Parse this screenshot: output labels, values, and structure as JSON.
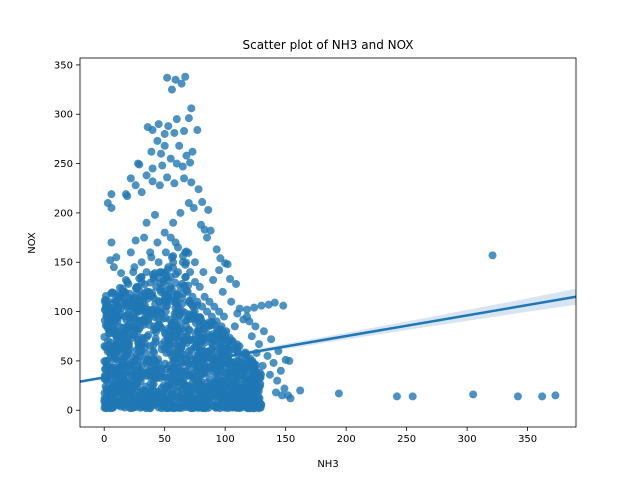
{
  "chart_data": {
    "type": "scatter",
    "title": "Scatter plot of NH3 and NOX",
    "xlabel": "NH3",
    "ylabel": "NOX",
    "xlim": [
      -20,
      390
    ],
    "ylim": [
      -17,
      357
    ],
    "xticks": [
      0,
      50,
      100,
      150,
      200,
      250,
      300,
      350
    ],
    "yticks": [
      0,
      50,
      100,
      150,
      200,
      250,
      300,
      350
    ],
    "grid": false,
    "point_color": "#1f77b4",
    "regression_line": {
      "color": "#1f77b4",
      "band_color": "#a6c4e3",
      "x": [
        -20,
        390
      ],
      "y": [
        29,
        115
      ],
      "band_halfwidth_at_end": [
        1.5,
        8
      ]
    },
    "dense_cluster": {
      "description_note": "",
      "x_range": [
        0,
        130
      ],
      "y_range": [
        2,
        115
      ]
    },
    "points": [
      [
        52,
        337
      ],
      [
        59,
        335
      ],
      [
        67,
        338
      ],
      [
        56,
        325
      ],
      [
        64,
        331
      ],
      [
        72,
        306
      ],
      [
        45,
        290
      ],
      [
        53,
        288
      ],
      [
        60,
        295
      ],
      [
        70,
        296
      ],
      [
        36,
        287
      ],
      [
        40,
        284
      ],
      [
        50,
        280
      ],
      [
        58,
        281
      ],
      [
        66,
        283
      ],
      [
        77,
        284
      ],
      [
        44,
        273
      ],
      [
        50,
        268
      ],
      [
        39,
        262
      ],
      [
        47,
        260
      ],
      [
        62,
        268
      ],
      [
        68,
        258
      ],
      [
        73,
        262
      ],
      [
        71,
        251
      ],
      [
        65,
        247
      ],
      [
        60,
        250
      ],
      [
        55,
        255
      ],
      [
        48,
        248
      ],
      [
        40,
        245
      ],
      [
        35,
        238
      ],
      [
        28,
        250
      ],
      [
        29,
        249
      ],
      [
        22,
        235
      ],
      [
        26,
        228
      ],
      [
        31,
        221
      ],
      [
        18,
        219
      ],
      [
        19,
        217
      ],
      [
        6,
        219
      ],
      [
        3,
        210
      ],
      [
        6,
        205
      ],
      [
        40,
        232
      ],
      [
        46,
        228
      ],
      [
        52,
        236
      ],
      [
        58,
        230
      ],
      [
        66,
        235
      ],
      [
        72,
        231
      ],
      [
        78,
        224
      ],
      [
        81,
        211
      ],
      [
        86,
        203
      ],
      [
        80,
        188
      ],
      [
        85,
        175
      ],
      [
        83,
        183
      ],
      [
        88,
        182
      ],
      [
        93,
        163
      ],
      [
        96,
        154
      ],
      [
        100,
        149
      ],
      [
        102,
        148
      ],
      [
        95,
        142
      ],
      [
        104,
        133
      ],
      [
        109,
        128
      ],
      [
        6,
        170
      ],
      [
        10,
        155
      ],
      [
        5,
        152
      ],
      [
        14,
        139
      ],
      [
        18,
        132
      ],
      [
        8,
        145
      ],
      [
        12,
        115
      ],
      [
        16,
        120
      ],
      [
        20,
        128
      ],
      [
        24,
        140
      ],
      [
        31,
        150
      ],
      [
        38,
        160
      ],
      [
        44,
        170
      ],
      [
        50,
        180
      ],
      [
        57,
        190
      ],
      [
        63,
        200
      ],
      [
        70,
        210
      ],
      [
        74,
        205
      ],
      [
        42,
        198
      ],
      [
        35,
        190
      ],
      [
        26,
        172
      ],
      [
        22,
        160
      ],
      [
        55,
        175
      ],
      [
        61,
        165
      ],
      [
        67,
        160
      ],
      [
        75,
        150
      ],
      [
        82,
        140
      ],
      [
        90,
        132
      ],
      [
        98,
        120
      ],
      [
        105,
        110
      ],
      [
        112,
        103
      ],
      [
        118,
        102
      ],
      [
        124,
        104
      ],
      [
        130,
        106
      ],
      [
        136,
        107
      ],
      [
        141,
        109
      ],
      [
        148,
        106
      ],
      [
        120,
        90
      ],
      [
        125,
        85
      ],
      [
        132,
        80
      ],
      [
        138,
        72
      ],
      [
        144,
        60
      ],
      [
        150,
        51
      ],
      [
        153,
        50
      ],
      [
        128,
        67
      ],
      [
        135,
        55
      ],
      [
        140,
        48
      ],
      [
        146,
        40
      ],
      [
        118,
        95
      ],
      [
        122,
        75
      ],
      [
        110,
        98
      ],
      [
        115,
        92
      ],
      [
        108,
        85
      ],
      [
        126,
        58
      ],
      [
        131,
        45
      ],
      [
        137,
        36
      ],
      [
        143,
        30
      ],
      [
        149,
        22
      ],
      [
        152,
        15
      ],
      [
        154,
        12
      ],
      [
        142,
        18
      ],
      [
        147,
        15
      ],
      [
        162,
        20
      ],
      [
        194,
        17
      ],
      [
        242,
        14
      ],
      [
        255,
        14
      ],
      [
        305,
        16
      ],
      [
        342,
        14
      ],
      [
        362,
        14
      ],
      [
        373,
        15
      ],
      [
        321,
        157
      ],
      [
        10,
        60
      ],
      [
        14,
        45
      ],
      [
        18,
        70
      ],
      [
        22,
        55
      ],
      [
        26,
        40
      ],
      [
        30,
        85
      ],
      [
        34,
        95
      ],
      [
        38,
        65
      ],
      [
        42,
        50
      ],
      [
        46,
        110
      ],
      [
        50,
        120
      ],
      [
        54,
        75
      ],
      [
        58,
        90
      ],
      [
        62,
        100
      ],
      [
        66,
        80
      ],
      [
        70,
        60
      ],
      [
        74,
        95
      ],
      [
        78,
        70
      ],
      [
        82,
        55
      ],
      [
        86,
        85
      ],
      [
        90,
        65
      ],
      [
        94,
        45
      ],
      [
        98,
        75
      ],
      [
        102,
        50
      ],
      [
        106,
        40
      ],
      [
        110,
        60
      ],
      [
        114,
        35
      ],
      [
        2,
        30
      ],
      [
        4,
        20
      ],
      [
        8,
        10
      ],
      [
        12,
        5
      ],
      [
        16,
        25
      ],
      [
        20,
        15
      ],
      [
        24,
        8
      ],
      [
        28,
        30
      ],
      [
        32,
        20
      ],
      [
        36,
        12
      ],
      [
        40,
        25
      ],
      [
        44,
        35
      ],
      [
        48,
        15
      ],
      [
        52,
        10
      ],
      [
        56,
        30
      ],
      [
        60,
        20
      ],
      [
        64,
        40
      ],
      [
        68,
        25
      ],
      [
        72,
        15
      ],
      [
        76,
        30
      ],
      [
        80,
        20
      ],
      [
        84,
        10
      ],
      [
        88,
        25
      ],
      [
        92,
        30
      ],
      [
        96,
        15
      ],
      [
        100,
        25
      ],
      [
        104,
        20
      ],
      [
        108,
        10
      ],
      [
        112,
        18
      ],
      [
        116,
        25
      ],
      [
        120,
        12
      ],
      [
        124,
        20
      ],
      [
        128,
        8
      ],
      [
        2,
        2
      ],
      [
        5,
        40
      ],
      [
        7,
        80
      ],
      [
        9,
        100
      ],
      [
        11,
        90
      ],
      [
        13,
        75
      ],
      [
        15,
        110
      ],
      [
        17,
        95
      ],
      [
        19,
        130
      ],
      [
        21,
        118
      ],
      [
        23,
        105
      ],
      [
        25,
        145
      ],
      [
        27,
        125
      ],
      [
        29,
        112
      ],
      [
        31,
        135
      ],
      [
        33,
        175
      ],
      [
        35,
        140
      ],
      [
        37,
        120
      ],
      [
        39,
        155
      ],
      [
        41,
        135
      ],
      [
        43,
        125
      ],
      [
        45,
        150
      ],
      [
        47,
        140
      ],
      [
        49,
        130
      ],
      [
        51,
        160
      ],
      [
        53,
        145
      ],
      [
        55,
        135
      ],
      [
        57,
        150
      ],
      [
        59,
        170
      ],
      [
        61,
        140
      ],
      [
        63,
        125
      ],
      [
        65,
        150
      ],
      [
        67,
        135
      ],
      [
        69,
        120
      ],
      [
        71,
        140
      ],
      [
        73,
        115
      ],
      [
        75,
        130
      ],
      [
        77,
        110
      ],
      [
        79,
        125
      ],
      [
        81,
        105
      ],
      [
        83,
        115
      ],
      [
        85,
        100
      ],
      [
        87,
        110
      ],
      [
        89,
        95
      ],
      [
        91,
        105
      ],
      [
        93,
        90
      ],
      [
        95,
        100
      ],
      [
        97,
        85
      ],
      [
        99,
        95
      ],
      [
        101,
        80
      ]
    ]
  }
}
